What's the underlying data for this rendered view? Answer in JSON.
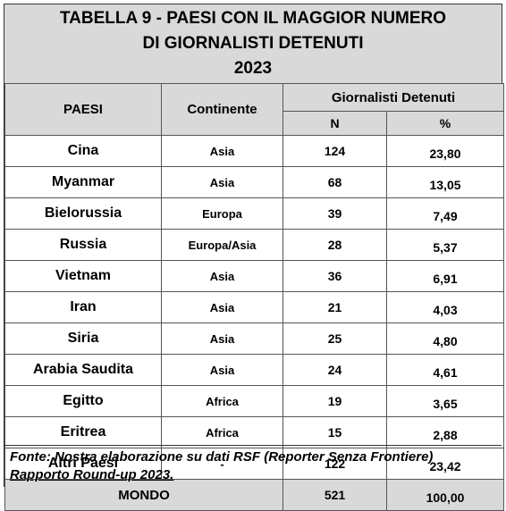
{
  "title": {
    "line1": "TABELLA 9 - PAESI CON IL MAGGIOR NUMERO",
    "line2": "DI GIORNALISTI DETENUTI",
    "line3": "2023"
  },
  "headers": {
    "paesi": "PAESI",
    "continente": "Continente",
    "giornalisti": "Giornalisti Detenuti",
    "n": "N",
    "pct": "%"
  },
  "rows": [
    {
      "paese": "Cina",
      "continente": "Asia",
      "n": "124",
      "pct": "23,80"
    },
    {
      "paese": "Myanmar",
      "continente": "Asia",
      "n": "68",
      "pct": "13,05"
    },
    {
      "paese": "Bielorussia",
      "continente": "Europa",
      "n": "39",
      "pct": "7,49"
    },
    {
      "paese": "Russia",
      "continente": "Europa/Asia",
      "n": "28",
      "pct": "5,37"
    },
    {
      "paese": "Vietnam",
      "continente": "Asia",
      "n": "36",
      "pct": "6,91"
    },
    {
      "paese": "Iran",
      "continente": "Asia",
      "n": "21",
      "pct": "4,03"
    },
    {
      "paese": "Siria",
      "continente": "Asia",
      "n": "25",
      "pct": "4,80"
    },
    {
      "paese": "Arabia Saudita",
      "continente": "Asia",
      "n": "24",
      "pct": "4,61"
    },
    {
      "paese": "Egitto",
      "continente": "Africa",
      "n": "19",
      "pct": "3,65"
    },
    {
      "paese": "Eritrea",
      "continente": "Africa",
      "n": "15",
      "pct": "2,88"
    },
    {
      "paese": "Altri Paesi",
      "continente": "-",
      "n": "122",
      "pct": "23,42"
    }
  ],
  "total": {
    "label": "MONDO",
    "n": "521",
    "pct": "100,00"
  },
  "note": {
    "line1": "Fonte: Nostra  elaborazione su dati RSF (Reporter Senza Frontiere)",
    "line2": "Rapporto Round-up 2023."
  }
}
